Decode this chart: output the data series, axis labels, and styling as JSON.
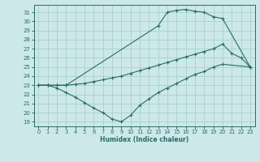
{
  "xlabel": "Humidex (Indice chaleur)",
  "bg_color": "#cce8e8",
  "grid_color": "#aad0d0",
  "line_color": "#2a6b6b",
  "xlim": [
    -0.5,
    23.5
  ],
  "ylim": [
    18.5,
    31.8
  ],
  "xticks": [
    0,
    1,
    2,
    3,
    4,
    5,
    6,
    7,
    8,
    9,
    10,
    11,
    12,
    13,
    14,
    15,
    16,
    17,
    18,
    19,
    20,
    21,
    22,
    23
  ],
  "yticks": [
    19,
    20,
    21,
    22,
    23,
    24,
    25,
    26,
    27,
    28,
    29,
    30,
    31
  ],
  "curve_max_x": [
    0,
    1,
    2,
    3,
    13,
    14,
    15,
    16,
    17,
    18,
    19,
    20,
    23
  ],
  "curve_max_y": [
    23,
    23,
    23,
    23,
    29.5,
    31.0,
    31.2,
    31.3,
    31.1,
    31.0,
    30.5,
    30.3,
    25
  ],
  "curve_mid_x": [
    0,
    1,
    2,
    3,
    4,
    5,
    6,
    7,
    8,
    9,
    10,
    11,
    12,
    13,
    14,
    15,
    16,
    17,
    18,
    19,
    20,
    21,
    22,
    23
  ],
  "curve_mid_y": [
    23.0,
    23.0,
    23.0,
    23.0,
    23.1,
    23.2,
    23.4,
    23.6,
    23.8,
    24.0,
    24.3,
    24.6,
    24.9,
    25.2,
    25.5,
    25.8,
    26.1,
    26.4,
    26.7,
    27.0,
    27.5,
    26.5,
    26.0,
    25.0
  ],
  "curve_min_x": [
    0,
    1,
    2,
    3,
    4,
    5,
    6,
    7,
    8,
    9,
    10,
    11,
    12,
    13,
    14,
    15,
    16,
    17,
    18,
    19,
    20,
    23
  ],
  "curve_min_y": [
    23.0,
    23.0,
    22.7,
    22.2,
    21.7,
    21.1,
    20.5,
    20.0,
    19.3,
    19.0,
    19.7,
    20.8,
    21.5,
    22.2,
    22.7,
    23.2,
    23.7,
    24.2,
    24.5,
    25.0,
    25.3,
    25.0
  ]
}
